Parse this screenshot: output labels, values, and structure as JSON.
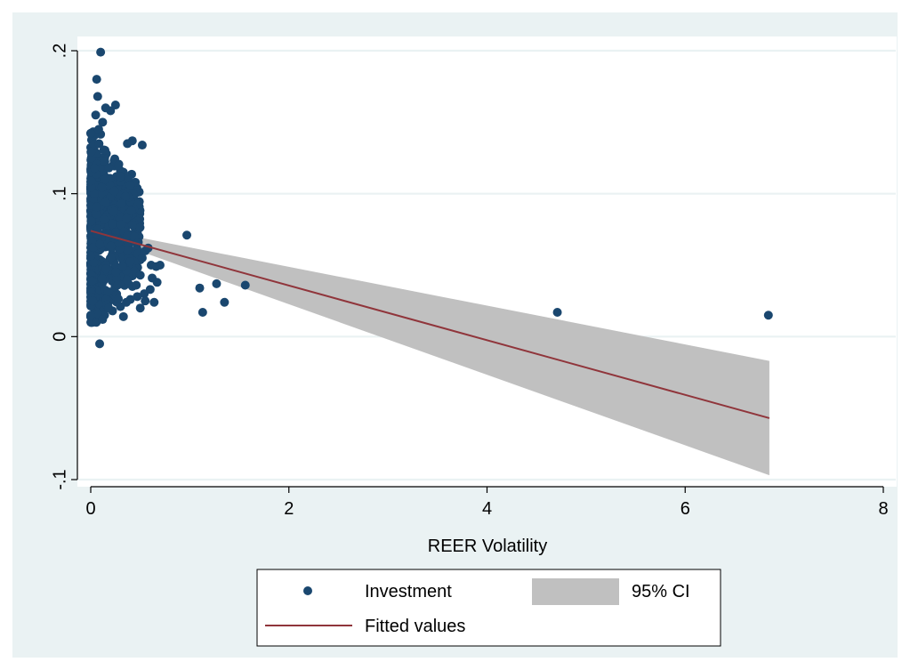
{
  "chart_data": {
    "type": "scatter",
    "title": "",
    "xlabel": "REER Volatility",
    "ylabel": "",
    "xlim": [
      0,
      8
    ],
    "ylim": [
      -0.1,
      0.2
    ],
    "x_ticks": [
      0,
      2,
      4,
      6,
      8
    ],
    "x_tick_labels": [
      "0",
      "2",
      "4",
      "6",
      "8"
    ],
    "y_ticks": [
      -0.1,
      0,
      0.1,
      0.2
    ],
    "y_tick_labels": [
      "-.1",
      "0",
      ".1",
      ".2"
    ],
    "grid": true,
    "legend_position": "bottom",
    "legend": {
      "investment": "Investment",
      "ci": "95% CI",
      "fitted": "Fitted values"
    },
    "colors": {
      "points": "#1a476f",
      "fit": "#90353b",
      "ci": "#c0c0c0",
      "outer_bg": "#eaf2f3",
      "plot_bg": "#ffffff",
      "grid": "#eaf2f3"
    },
    "fit": {
      "x": [
        0,
        6.85
      ],
      "y": [
        0.074,
        -0.057
      ]
    },
    "ci_band": {
      "x": [
        0,
        6.85
      ],
      "lower": [
        0.072,
        -0.097
      ],
      "upper": [
        0.076,
        -0.017
      ]
    },
    "scatter_cluster": {
      "x_range": [
        0,
        0.5
      ],
      "y_range": [
        0.01,
        0.165
      ],
      "count": 700
    },
    "series": [
      {
        "name": "Investment",
        "points": [
          [
            0.1,
            0.199
          ],
          [
            0.06,
            0.18
          ],
          [
            0.07,
            0.168
          ],
          [
            0.25,
            0.162
          ],
          [
            0.2,
            0.158
          ],
          [
            0.05,
            0.155
          ],
          [
            0.12,
            0.15
          ],
          [
            0.15,
            0.16
          ],
          [
            0.08,
            0.145
          ],
          [
            0.52,
            0.134
          ],
          [
            0.42,
            0.137
          ],
          [
            0.37,
            0.135
          ],
          [
            0.45,
            0.108
          ],
          [
            0.4,
            0.106
          ],
          [
            0.3,
            0.112
          ],
          [
            0.35,
            0.098
          ],
          [
            0.28,
            0.12
          ],
          [
            0.31,
            0.093
          ],
          [
            0.41,
            0.088
          ],
          [
            0.42,
            0.078
          ],
          [
            0.44,
            0.07
          ],
          [
            0.48,
            0.066
          ],
          [
            0.55,
            0.06
          ],
          [
            0.52,
            0.055
          ],
          [
            0.58,
            0.062
          ],
          [
            0.61,
            0.05
          ],
          [
            0.66,
            0.049
          ],
          [
            0.7,
            0.05
          ],
          [
            0.62,
            0.041
          ],
          [
            0.67,
            0.038
          ],
          [
            0.5,
            0.043
          ],
          [
            0.46,
            0.036
          ],
          [
            0.54,
            0.03
          ],
          [
            0.6,
            0.033
          ],
          [
            0.64,
            0.024
          ],
          [
            0.47,
            0.028
          ],
          [
            0.4,
            0.026
          ],
          [
            0.36,
            0.024
          ],
          [
            0.3,
            0.021
          ],
          [
            0.22,
            0.018
          ],
          [
            0.14,
            0.015
          ],
          [
            0.07,
            0.016
          ],
          [
            0.0,
            0.015
          ],
          [
            0.02,
            0.025
          ],
          [
            0.12,
            0.012
          ],
          [
            0.18,
            0.02
          ],
          [
            0.09,
            -0.005
          ],
          [
            0.33,
            0.014
          ],
          [
            0.5,
            0.02
          ],
          [
            0.55,
            0.025
          ],
          [
            0.97,
            0.071
          ],
          [
            1.1,
            0.034
          ],
          [
            1.27,
            0.037
          ],
          [
            1.13,
            0.017
          ],
          [
            1.35,
            0.024
          ],
          [
            1.56,
            0.036
          ],
          [
            4.71,
            0.017
          ],
          [
            6.84,
            0.015
          ]
        ]
      }
    ]
  }
}
